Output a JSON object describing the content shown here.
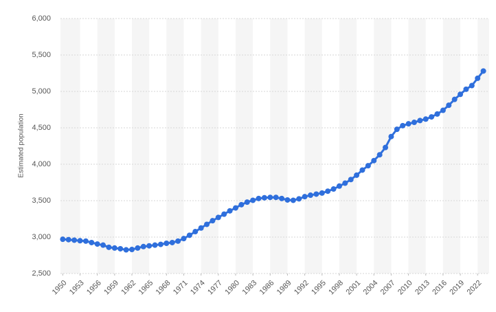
{
  "chart_data": {
    "type": "line",
    "y_label": "Estimated population",
    "x": [
      1950,
      1951,
      1952,
      1953,
      1954,
      1955,
      1956,
      1957,
      1958,
      1959,
      1960,
      1961,
      1962,
      1963,
      1964,
      1965,
      1966,
      1967,
      1968,
      1969,
      1970,
      1971,
      1972,
      1973,
      1974,
      1975,
      1976,
      1977,
      1978,
      1979,
      1980,
      1981,
      1982,
      1983,
      1984,
      1985,
      1986,
      1987,
      1988,
      1989,
      1990,
      1991,
      1992,
      1993,
      1994,
      1995,
      1996,
      1997,
      1998,
      1999,
      2000,
      2001,
      2002,
      2003,
      2004,
      2005,
      2006,
      2007,
      2008,
      2009,
      2010,
      2011,
      2012,
      2013,
      2014,
      2015,
      2016,
      2017,
      2018,
      2019,
      2020,
      2021,
      2022,
      2023
    ],
    "values": [
      2970,
      2965,
      2958,
      2950,
      2945,
      2925,
      2905,
      2890,
      2860,
      2850,
      2840,
      2825,
      2830,
      2850,
      2870,
      2880,
      2890,
      2900,
      2915,
      2925,
      2945,
      2980,
      3025,
      3075,
      3125,
      3175,
      3225,
      3270,
      3315,
      3360,
      3400,
      3445,
      3480,
      3505,
      3530,
      3540,
      3545,
      3545,
      3530,
      3510,
      3505,
      3525,
      3555,
      3575,
      3590,
      3605,
      3630,
      3660,
      3700,
      3740,
      3790,
      3850,
      3920,
      3980,
      4050,
      4130,
      4230,
      4380,
      4480,
      4530,
      4555,
      4575,
      4600,
      4620,
      4650,
      4690,
      4740,
      4810,
      4890,
      4960,
      5030,
      5080,
      5180,
      5280
    ],
    "color": "#2f6fdc",
    "xlim": [
      1949.6,
      2024.0
    ],
    "xticks": [
      1950,
      1953,
      1956,
      1959,
      1962,
      1965,
      1968,
      1971,
      1974,
      1977,
      1980,
      1983,
      1986,
      1989,
      1992,
      1995,
      1998,
      2001,
      2004,
      2007,
      2010,
      2013,
      2016,
      2019,
      2022
    ],
    "ylim": [
      2500,
      6000
    ],
    "yticks": [
      {
        "value": 2500,
        "label": "2,500"
      },
      {
        "value": 3000,
        "label": "3,000"
      },
      {
        "value": 3500,
        "label": "3,500"
      },
      {
        "value": 4000,
        "label": "4,000"
      },
      {
        "value": 4500,
        "label": "4,500"
      },
      {
        "value": 5000,
        "label": "5,000"
      },
      {
        "value": 5500,
        "label": "5,500"
      },
      {
        "value": 6000,
        "label": "6,000"
      }
    ],
    "grid": true
  }
}
